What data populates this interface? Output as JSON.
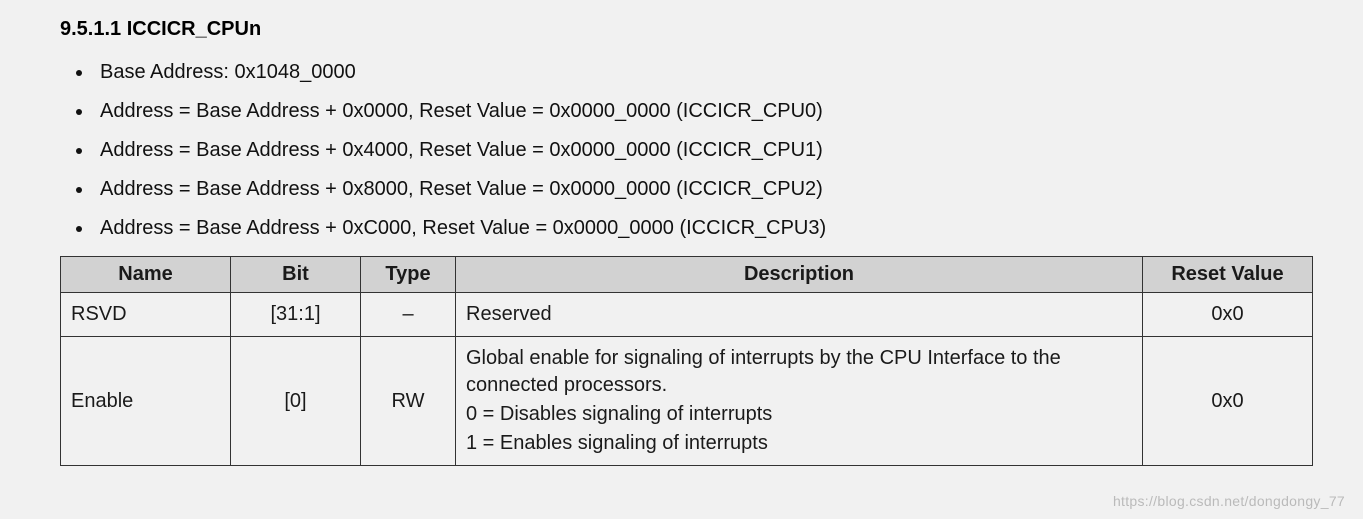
{
  "heading": "9.5.1.1 ICCICR_CPUn",
  "bullets": [
    "Base Address: 0x1048_0000",
    "Address = Base Address + 0x0000, Reset Value = 0x0000_0000 (ICCICR_CPU0)",
    "Address = Base Address + 0x4000, Reset Value = 0x0000_0000 (ICCICR_CPU1)",
    "Address = Base Address + 0x8000, Reset Value = 0x0000_0000 (ICCICR_CPU2)",
    "Address = Base Address + 0xC000, Reset Value = 0x0000_0000 (ICCICR_CPU3)"
  ],
  "table": {
    "columns": [
      "Name",
      "Bit",
      "Type",
      "Description",
      "Reset Value"
    ],
    "rows": [
      {
        "name": "RSVD",
        "bit": "[31:1]",
        "type": "–",
        "description": [
          "Reserved"
        ],
        "reset": "0x0"
      },
      {
        "name": "Enable",
        "bit": "[0]",
        "type": "RW",
        "description": [
          "Global enable for signaling of interrupts by the CPU Interface to the connected processors.",
          "0 = Disables signaling of interrupts",
          "1 = Enables signaling of interrupts"
        ],
        "reset": "0x0"
      }
    ]
  },
  "watermark": "https://blog.csdn.net/dongdongy_77"
}
